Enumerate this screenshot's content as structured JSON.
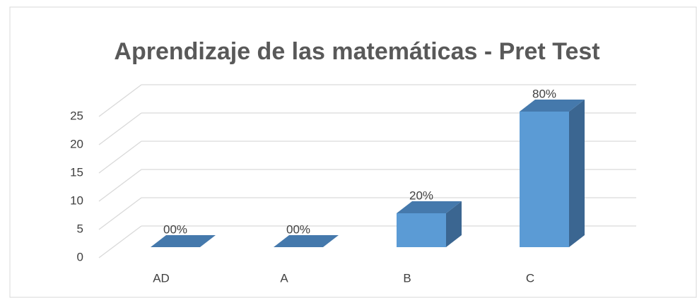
{
  "chart_data": {
    "type": "bar3d",
    "title": "Aprendizaje de las matemáticas - Pret Test",
    "categories": [
      "AD",
      "A",
      "B",
      "C"
    ],
    "values": [
      0,
      0,
      6,
      24
    ],
    "value_labels": [
      "00%",
      "00%",
      "20%",
      "80%"
    ],
    "color": "#5b9bd5",
    "ylim": [
      0,
      25
    ],
    "yticks": [
      0,
      5,
      10,
      15,
      20,
      25
    ],
    "grid": true
  }
}
